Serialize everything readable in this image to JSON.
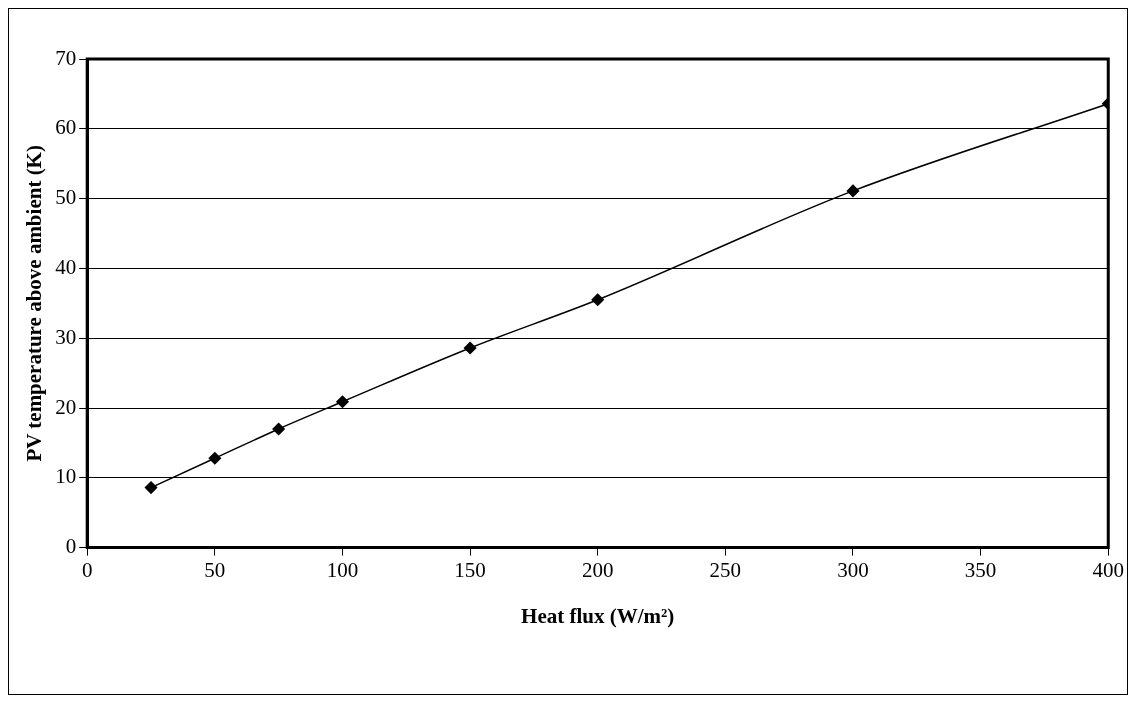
{
  "chart_data": {
    "type": "line",
    "xlabel": "Heat flux (W/m²)",
    "ylabel": "PV temperature above ambient (K)",
    "x": [
      25,
      50,
      75,
      100,
      150,
      200,
      300,
      400
    ],
    "series": [
      {
        "color": "#000000",
        "values": [
          8.6,
          12.8,
          17.0,
          20.9,
          28.6,
          35.5,
          51.1,
          63.6
        ]
      }
    ],
    "xlim": [
      0,
      400
    ],
    "xticks": [
      0,
      50,
      100,
      150,
      200,
      250,
      300,
      350,
      400
    ],
    "ylim": [
      0,
      70
    ],
    "yticks": [
      0,
      10,
      20,
      30,
      40,
      50,
      60,
      70
    ],
    "grid": "y",
    "legend": false,
    "marker": "diamond",
    "line_style": "solid"
  }
}
